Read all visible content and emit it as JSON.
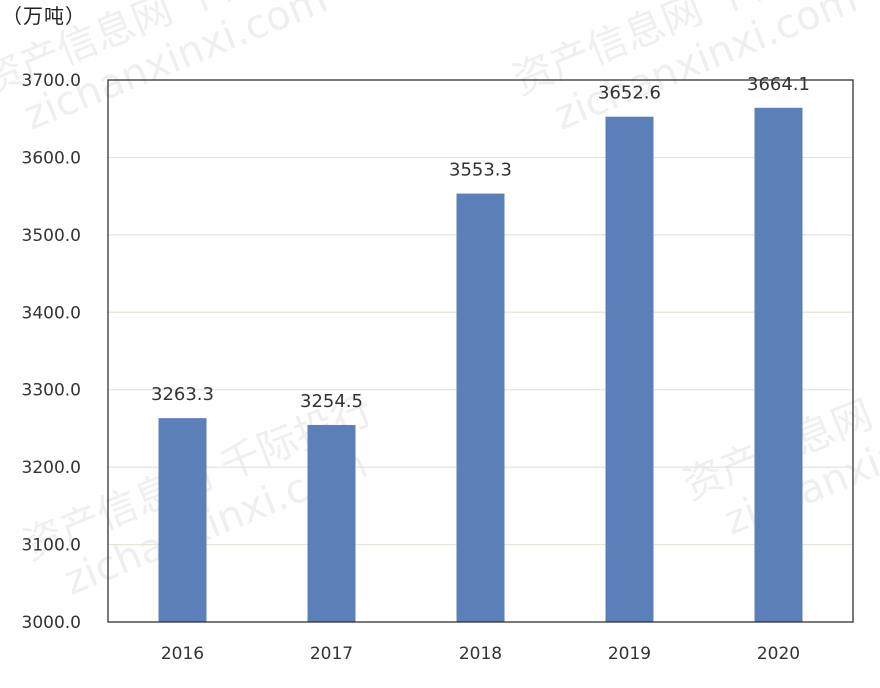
{
  "chart_data": {
    "type": "bar",
    "title": "",
    "xlabel": "",
    "ylabel": "（万吨）",
    "categories": [
      "2016",
      "2017",
      "2018",
      "2019",
      "2020"
    ],
    "values": [
      3263.3,
      3254.5,
      3553.3,
      3652.6,
      3664.1
    ],
    "value_labels": [
      "3263.3",
      "3254.5",
      "3553.3",
      "3652.6",
      "3664.1"
    ],
    "ylim": [
      3000,
      3700
    ],
    "yticks": [
      3000,
      3100,
      3200,
      3300,
      3400,
      3500,
      3600,
      3700
    ],
    "ytick_labels": [
      "3000.0",
      "3100.0",
      "3200.0",
      "3300.0",
      "3400.0",
      "3500.0",
      "3600.0",
      "3700.0"
    ],
    "grid": true,
    "legend": "none",
    "bar_color": "#5b7fb8"
  },
  "watermark": {
    "lines": [
      "资产信息网 千际投行",
      "zichanxinxi.com"
    ]
  }
}
